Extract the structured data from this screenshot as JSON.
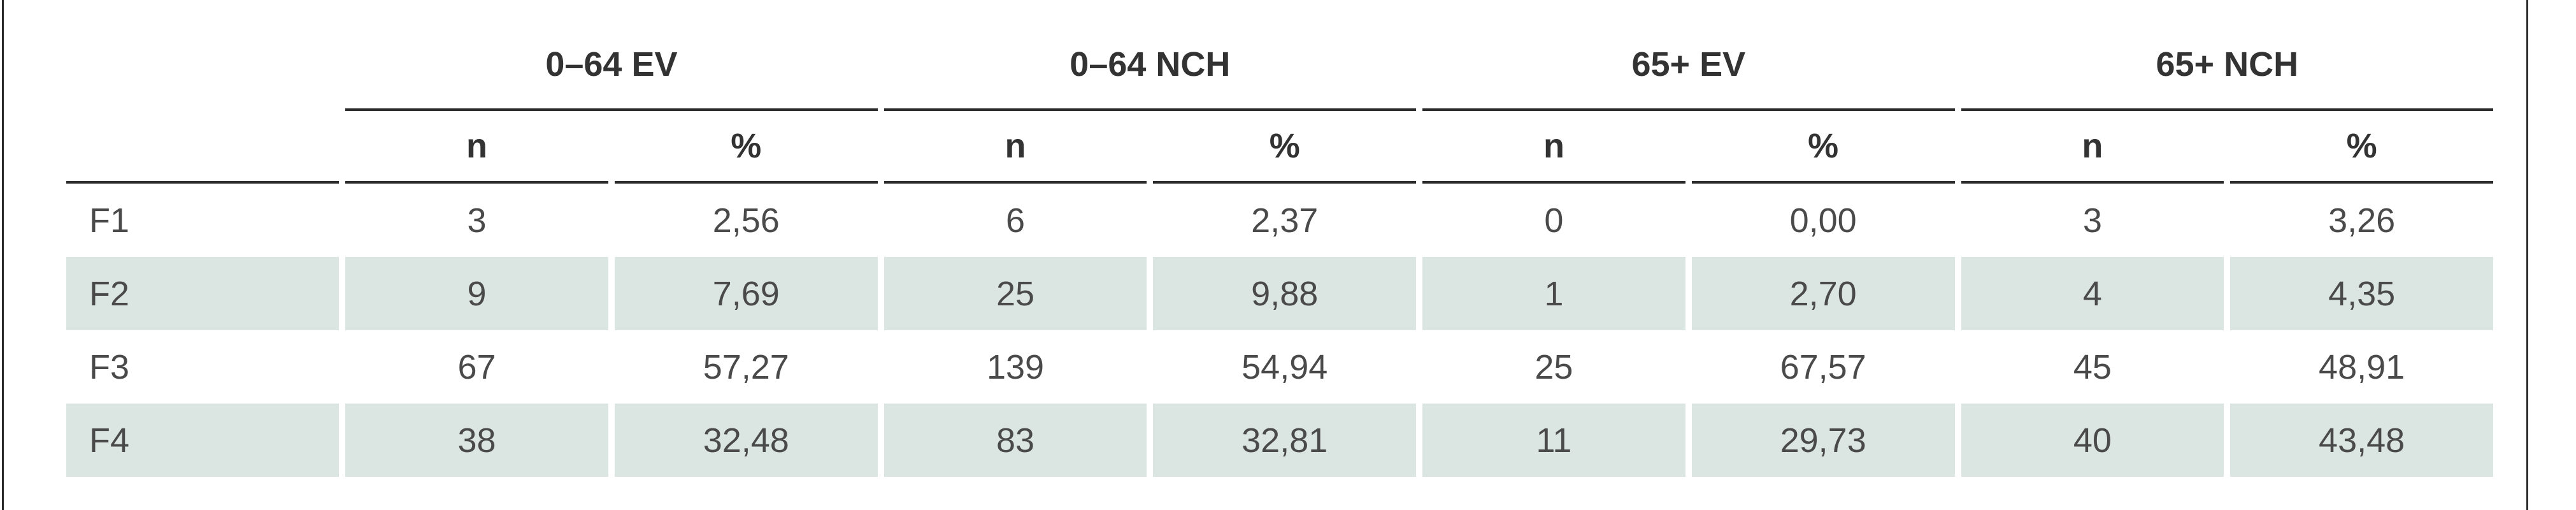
{
  "table": {
    "groups": [
      "0–64 EV",
      "0–64 NCH",
      "65+ EV",
      "65+ NCH"
    ],
    "subheaders": [
      "n",
      "%",
      "n",
      "%",
      "n",
      "%",
      "n",
      "%"
    ],
    "rows": [
      {
        "label": "F1",
        "cells": [
          "3",
          "2,56",
          "6",
          "2,37",
          "0",
          "0,00",
          "3",
          "3,26"
        ]
      },
      {
        "label": "F2",
        "cells": [
          "9",
          "7,69",
          "25",
          "9,88",
          "1",
          "2,70",
          "4",
          "4,35"
        ]
      },
      {
        "label": "F3",
        "cells": [
          "67",
          "57,27",
          "139",
          "54,94",
          "25",
          "67,57",
          "45",
          "48,91"
        ]
      },
      {
        "label": "F4",
        "cells": [
          "38",
          "32,48",
          "83",
          "32,81",
          "11",
          "29,73",
          "40",
          "43,48"
        ]
      }
    ],
    "shaded_row_color": "#dbe6e3",
    "rule_color": "#2b2b2b"
  }
}
